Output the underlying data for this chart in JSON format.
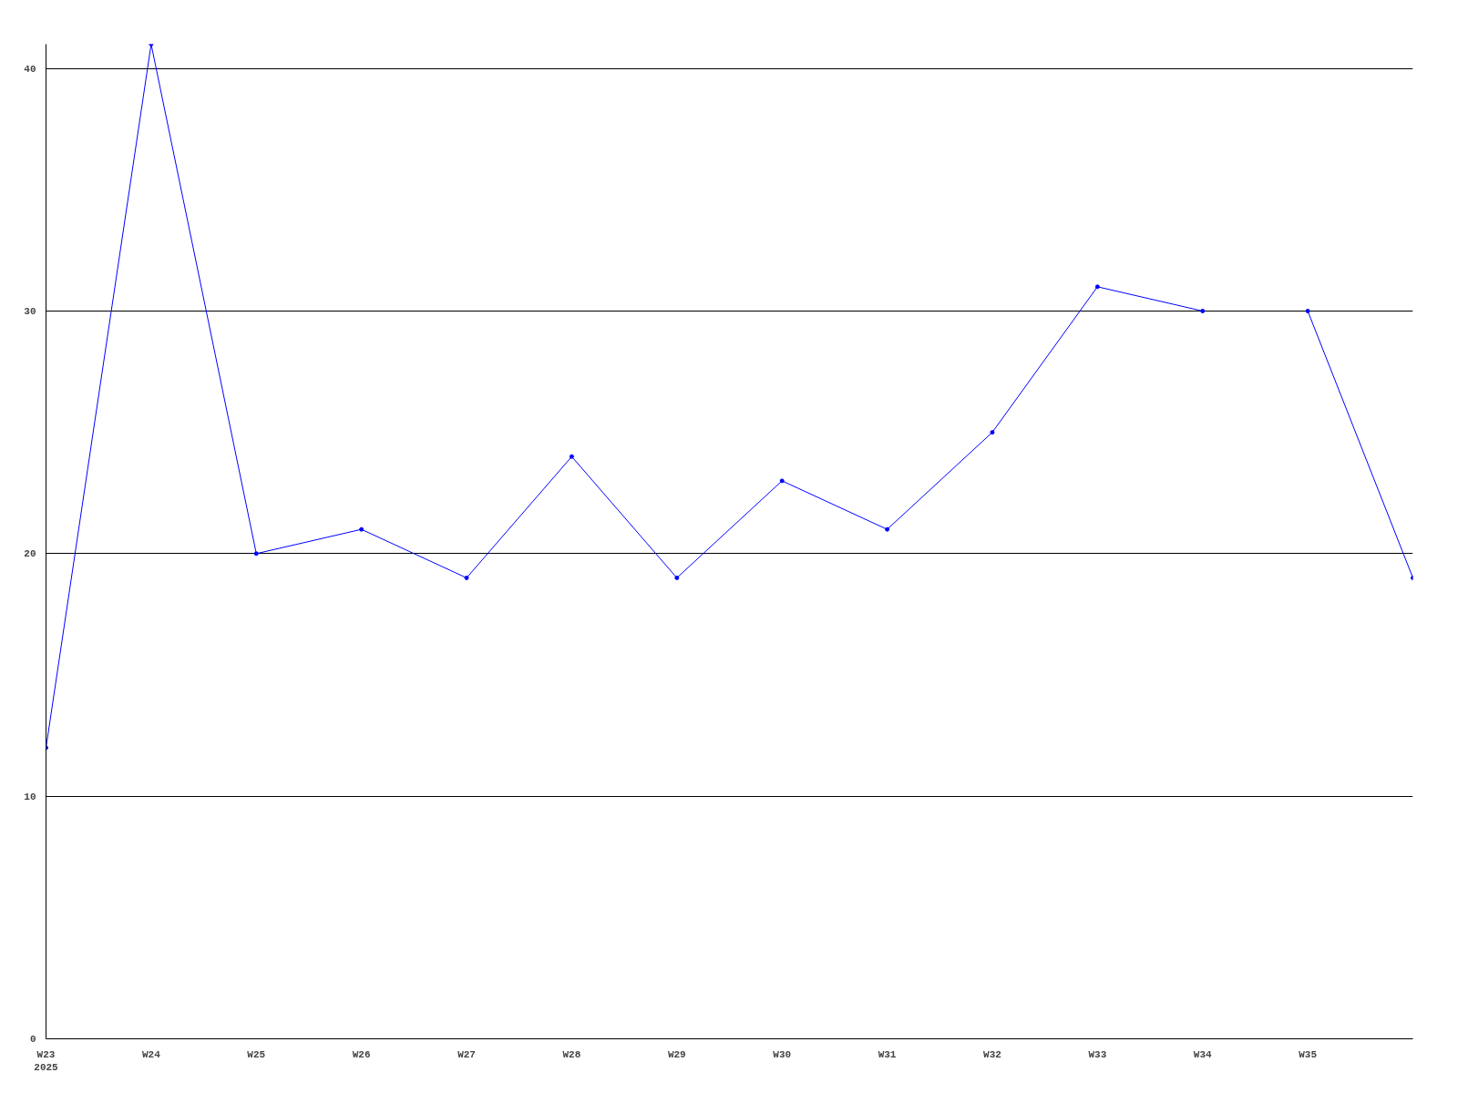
{
  "chart_data": {
    "type": "line",
    "categories": [
      "W23\n2025",
      "W24",
      "W25",
      "W26",
      "W27",
      "W28",
      "W29",
      "W30",
      "W31",
      "W32",
      "W33",
      "W34",
      "W35",
      null
    ],
    "series": [
      {
        "color": "#0000ff",
        "values": [
          12,
          41,
          20,
          21,
          19,
          24,
          19,
          23,
          21,
          25,
          31,
          30,
          null,
          null
        ]
      },
      {
        "color": "#0000ff",
        "values": [
          null,
          null,
          null,
          null,
          null,
          null,
          null,
          null,
          null,
          null,
          null,
          null,
          30,
          19
        ]
      }
    ],
    "ylim": [
      0,
      41
    ],
    "yticks": [
      0,
      10,
      20,
      30,
      40
    ],
    "grid": "y",
    "marker": "circle",
    "line_style": "solid"
  }
}
